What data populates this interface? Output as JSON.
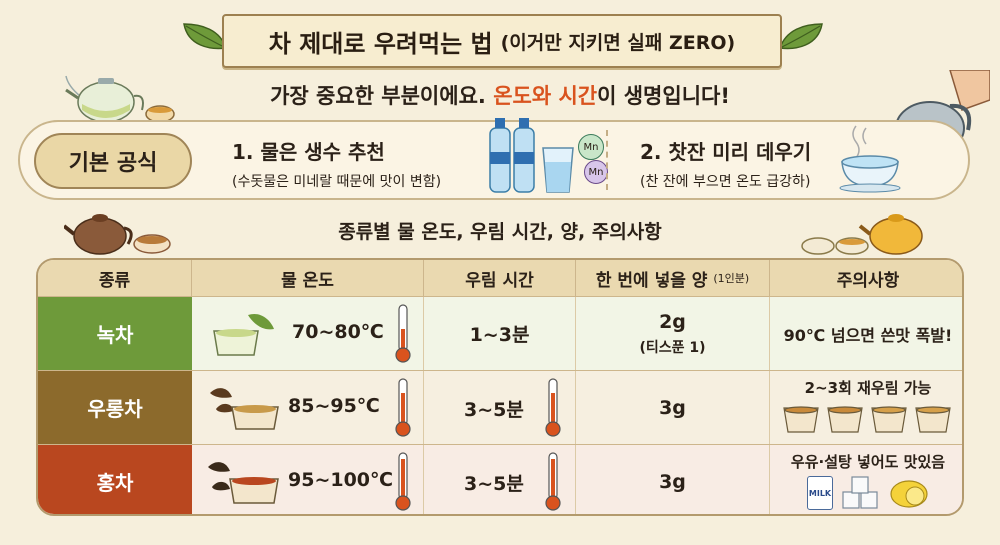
{
  "title": {
    "main": "차 제대로 우려먹는 법",
    "sub": "(이거만 지키면 실패 ZERO)"
  },
  "subtitle": {
    "pre": "가장 중요한 부분이에요. ",
    "highlight": "온도와 시간",
    "post": "이 생명입니다!"
  },
  "formula": {
    "label": "기본 공식",
    "item1_title": "1. 물은 생수 추천",
    "item1_sub": "(수돗물은 미네랄 때문에 맛이 변함)",
    "mineral1": "Mn",
    "mineral2": "Mn",
    "item2_title": "2. 찻잔 미리 데우기",
    "item2_sub": "(찬 잔에 부으면 온도 급강하)"
  },
  "section_title": "종류별 물 온도, 우림 시간, 양, 주의사항",
  "table": {
    "headers": {
      "type": "종류",
      "temp": "물 온도",
      "time": "우림 시간",
      "amount": "한 번에 넣을 양",
      "amount_note": "(1인분)",
      "caution": "주의사항"
    },
    "rows": [
      {
        "type": "녹차",
        "temp": "70~80℃",
        "time": "1~3분",
        "amount": "2g",
        "amount_note": "(티스푼 1)",
        "caution": "90℃ 넘으면 쓴맛 폭발!",
        "color": "#6e9a3a"
      },
      {
        "type": "우롱차",
        "temp": "85~95℃",
        "time": "3~5분",
        "amount": "3g",
        "amount_note": "",
        "caution": "2~3회 재우림 가능",
        "color": "#8c6a2c"
      },
      {
        "type": "홍차",
        "temp": "95~100℃",
        "time": "3~5분",
        "amount": "3g",
        "amount_note": "",
        "caution": "우유·설탕 넣어도 맛있음",
        "color": "#b9471f"
      }
    ],
    "milk_label": "MILK"
  }
}
